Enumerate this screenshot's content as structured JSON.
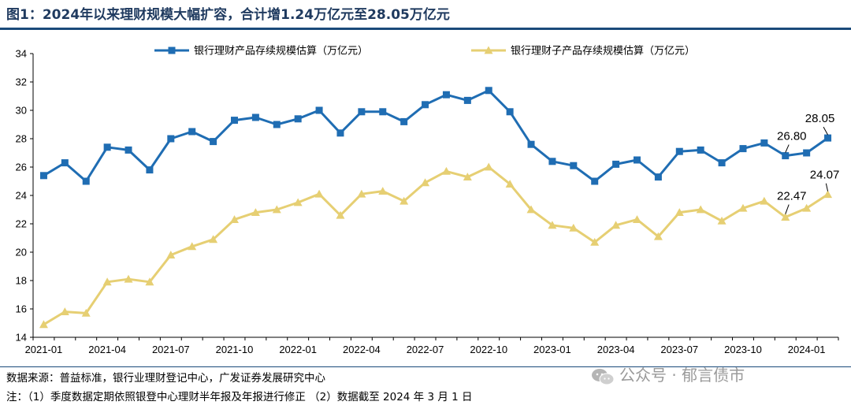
{
  "header": {
    "title": "图1：2024年以来理财规模大幅扩容，合计增1.24万亿元至28.05万亿元"
  },
  "footer": {
    "source": "数据来源：普益标准，银行业理财登记中心，广发证券发展研究中心",
    "note": "注：（1）季度数据定期依照银登中心理财半年报及年报进行修正  （2）数据截至 2024 年 3 月 1 日",
    "watermark": "公众号 · 郁言债市"
  },
  "chart_data": {
    "type": "line",
    "ylim": [
      14,
      34
    ],
    "yticks": [
      14,
      16,
      18,
      20,
      22,
      24,
      26,
      28,
      30,
      32,
      34
    ],
    "x": [
      "2021-01",
      "2021-02",
      "2021-03",
      "2021-04",
      "2021-05",
      "2021-06",
      "2021-07",
      "2021-08",
      "2021-09",
      "2021-10",
      "2021-11",
      "2021-12",
      "2022-01",
      "2022-02",
      "2022-03",
      "2022-04",
      "2022-05",
      "2022-06",
      "2022-07",
      "2022-08",
      "2022-09",
      "2022-10",
      "2022-11",
      "2022-12",
      "2023-01",
      "2023-02",
      "2023-03",
      "2023-04",
      "2023-05",
      "2023-06",
      "2023-07",
      "2023-08",
      "2023-09",
      "2023-10",
      "2023-11",
      "2023-12",
      "2024-01",
      "2024-02"
    ],
    "xtick_labels": [
      "2021-01",
      "2021-04",
      "2021-07",
      "2021-10",
      "2022-01",
      "2022-04",
      "2022-07",
      "2022-10",
      "2023-01",
      "2023-04",
      "2023-07",
      "2023-10",
      "2024-01"
    ],
    "legend_position": "top",
    "series": [
      {
        "name": "银行理财产品存续规模估算（万亿元）",
        "color": "#1f6db3",
        "marker": "square",
        "values": [
          25.4,
          26.3,
          25.0,
          27.4,
          27.2,
          25.8,
          28.0,
          28.5,
          27.8,
          29.3,
          29.5,
          29.0,
          29.4,
          30.0,
          28.4,
          29.9,
          29.9,
          29.2,
          30.4,
          31.1,
          30.7,
          31.4,
          29.9,
          27.6,
          26.4,
          26.1,
          25.0,
          26.2,
          26.5,
          25.3,
          27.1,
          27.2,
          26.3,
          27.3,
          27.7,
          26.8,
          27.0,
          28.05
        ]
      },
      {
        "name": "银行理财子产品存续规模估算（万亿元）",
        "color": "#e6cf73",
        "marker": "triangle",
        "values": [
          14.9,
          15.8,
          15.7,
          17.9,
          18.1,
          17.9,
          19.8,
          20.4,
          20.9,
          22.3,
          22.8,
          23.0,
          23.5,
          24.1,
          22.6,
          24.1,
          24.3,
          23.6,
          24.9,
          25.7,
          25.3,
          26.0,
          24.8,
          23.0,
          21.9,
          21.7,
          20.7,
          21.9,
          22.3,
          21.1,
          22.8,
          23.0,
          22.2,
          23.1,
          23.6,
          22.47,
          23.1,
          24.07
        ]
      }
    ],
    "annotations": [
      {
        "series": 0,
        "index": 35,
        "text": "26.80"
      },
      {
        "series": 0,
        "index": 37,
        "text": "28.05"
      },
      {
        "series": 1,
        "index": 35,
        "text": "22.47"
      },
      {
        "series": 1,
        "index": 37,
        "text": "24.07"
      }
    ]
  }
}
